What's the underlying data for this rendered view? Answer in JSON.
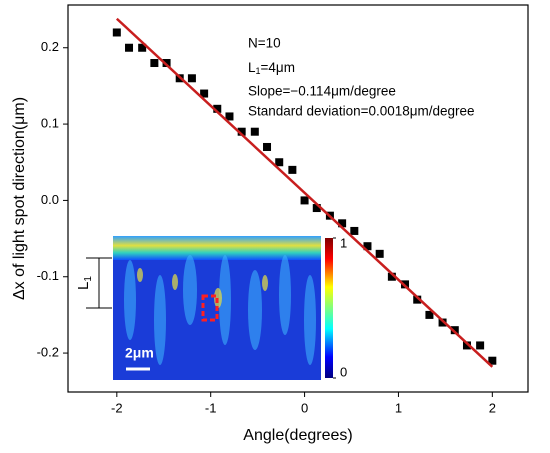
{
  "chart_data": {
    "type": "scatter",
    "xlabel": "Angle(degrees)",
    "ylabel": "Δx of light spot direction(μm)",
    "xlim": [
      -2.52,
      2.38
    ],
    "ylim": [
      -0.251,
      0.256
    ],
    "xticks": [
      -2,
      -1,
      0,
      1,
      2
    ],
    "yticks": [
      -0.2,
      -0.1,
      {
        "value": 0,
        "label": "0.0"
      },
      0.1,
      0.2
    ],
    "marker_color": "#000000",
    "x": [
      -2,
      -1.87,
      -1.73,
      -1.6,
      -1.47,
      -1.33,
      -1.2,
      -1.07,
      -0.93,
      -0.8,
      -0.67,
      -0.53,
      -0.4,
      -0.27,
      -0.13,
      0,
      0.13,
      0.27,
      0.4,
      0.53,
      0.67,
      0.8,
      0.93,
      1.07,
      1.2,
      1.33,
      1.47,
      1.6,
      1.73,
      1.87,
      2
    ],
    "values": [
      0.22,
      0.2,
      0.2,
      0.18,
      0.18,
      0.16,
      0.16,
      0.14,
      0.12,
      0.11,
      0.09,
      0.09,
      0.07,
      0.05,
      0.04,
      0.0,
      -0.01,
      -0.02,
      -0.03,
      -0.04,
      -0.06,
      -0.07,
      -0.1,
      -0.11,
      -0.13,
      -0.15,
      -0.16,
      -0.17,
      -0.19,
      -0.19,
      -0.21
    ],
    "fit": {
      "color": "#c81e1e",
      "x": [
        -2,
        2
      ],
      "values": [
        0.238,
        -0.218
      ]
    },
    "annotations": [
      "N=10",
      {
        "main": "L",
        "sub": "1",
        "rest": "=4μm"
      },
      "Slope=−0.114μm/degree",
      "Standard deviation=0.0018μm/degree"
    ],
    "inset": {
      "colorbar_lim": [
        0,
        1
      ],
      "colorbar_ticks": [
        1,
        0
      ],
      "scale_bar": "2μm",
      "length_label": {
        "main": "L",
        "sub": "1"
      }
    }
  }
}
